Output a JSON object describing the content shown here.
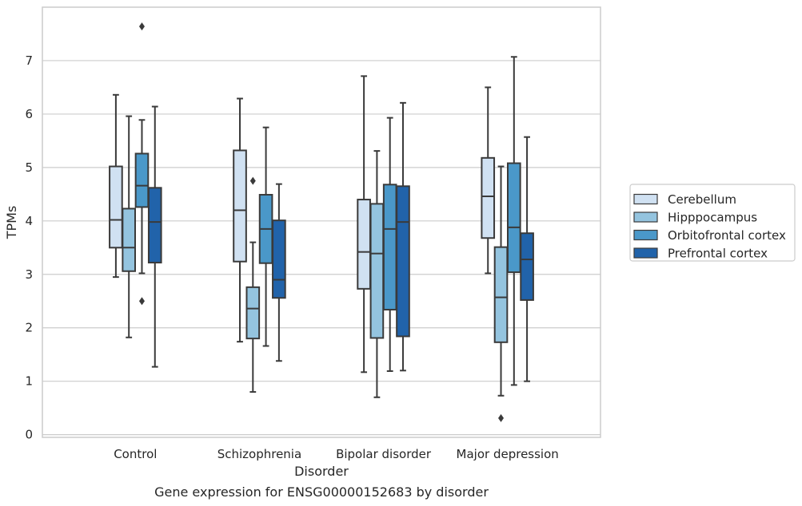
{
  "chart_data": {
    "type": "boxplot",
    "title": "",
    "caption": "Gene expression for ENSG00000152683 by disorder",
    "xlabel": "Disorder",
    "ylabel": "TPMs",
    "ylim": [
      -0.05,
      8.0
    ],
    "yticks": [
      "0",
      "1",
      "2",
      "3",
      "4",
      "5",
      "6",
      "7"
    ],
    "grid": "horizontal",
    "legend_placement": "right",
    "categories": [
      "Control",
      "Schizophrenia",
      "Bipolar disorder",
      "Major depression"
    ],
    "series": [
      {
        "name": "Cerebellum",
        "color": "#d0e1f2",
        "boxes": [
          {
            "whislo": 2.95,
            "q1": 3.5,
            "med": 4.02,
            "q3": 5.02,
            "whishi": 6.36,
            "fliers": []
          },
          {
            "whislo": 1.74,
            "q1": 3.24,
            "med": 4.2,
            "q3": 5.32,
            "whishi": 6.29,
            "fliers": []
          },
          {
            "whislo": 1.17,
            "q1": 2.73,
            "med": 3.42,
            "q3": 4.4,
            "whishi": 6.71,
            "fliers": []
          },
          {
            "whislo": 3.02,
            "q1": 3.68,
            "med": 4.46,
            "q3": 5.18,
            "whishi": 6.5,
            "fliers": []
          }
        ]
      },
      {
        "name": "Hipppocampus",
        "color": "#94c4df",
        "boxes": [
          {
            "whislo": 1.82,
            "q1": 3.06,
            "med": 3.5,
            "q3": 4.23,
            "whishi": 5.96,
            "fliers": []
          },
          {
            "whislo": 0.8,
            "q1": 1.8,
            "med": 2.36,
            "q3": 2.76,
            "whishi": 3.6,
            "fliers": [
              4.75
            ]
          },
          {
            "whislo": 0.7,
            "q1": 1.81,
            "med": 3.39,
            "q3": 4.32,
            "whishi": 5.31,
            "fliers": []
          },
          {
            "whislo": 0.73,
            "q1": 1.73,
            "med": 2.57,
            "q3": 3.51,
            "whishi": 5.02,
            "fliers": [
              0.31
            ]
          }
        ]
      },
      {
        "name": "Orbitofrontal cortex",
        "color": "#4a98c9",
        "boxes": [
          {
            "whislo": 3.02,
            "q1": 4.26,
            "med": 4.66,
            "q3": 5.26,
            "whishi": 5.89,
            "fliers": [
              2.5,
              7.64
            ]
          },
          {
            "whislo": 1.66,
            "q1": 3.21,
            "med": 3.85,
            "q3": 4.49,
            "whishi": 5.75,
            "fliers": []
          },
          {
            "whislo": 1.19,
            "q1": 2.34,
            "med": 3.85,
            "q3": 4.68,
            "whishi": 5.93,
            "fliers": []
          },
          {
            "whislo": 0.93,
            "q1": 3.04,
            "med": 3.88,
            "q3": 5.08,
            "whishi": 7.07,
            "fliers": []
          }
        ]
      },
      {
        "name": "Prefrontal cortex",
        "color": "#2163aa",
        "boxes": [
          {
            "whislo": 1.27,
            "q1": 3.22,
            "med": 3.98,
            "q3": 4.62,
            "whishi": 6.14,
            "fliers": []
          },
          {
            "whislo": 1.38,
            "q1": 2.56,
            "med": 2.9,
            "q3": 4.01,
            "whishi": 4.69,
            "fliers": []
          },
          {
            "whislo": 1.2,
            "q1": 1.84,
            "med": 3.98,
            "q3": 4.65,
            "whishi": 6.21,
            "fliers": []
          },
          {
            "whislo": 1.0,
            "q1": 2.52,
            "med": 3.28,
            "q3": 3.77,
            "whishi": 5.57,
            "fliers": []
          }
        ]
      }
    ]
  },
  "style": {
    "edge_color": "#3a3a3a",
    "grid_color": "#cccccc",
    "frame_color": "#cccccc",
    "background": "#ffffff"
  }
}
